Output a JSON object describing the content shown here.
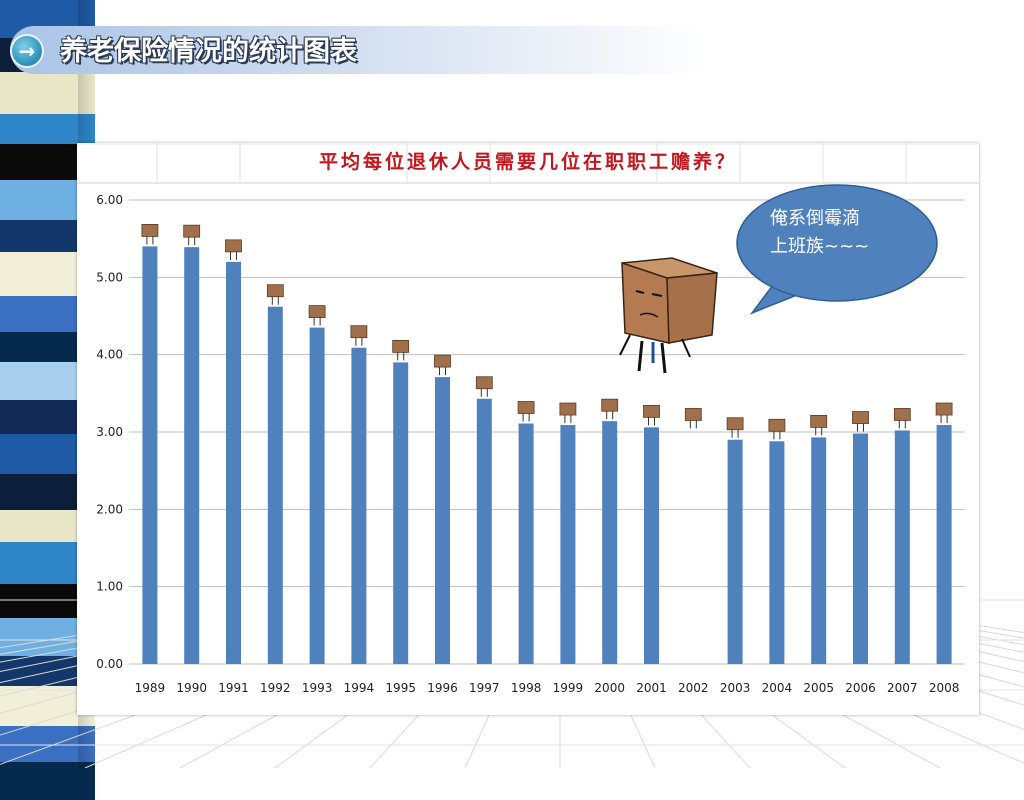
{
  "page": {
    "title": "养老保险情况的统计图表"
  },
  "bubble": {
    "line1": "俺系倒霉滴",
    "line2": "上班族~~~"
  },
  "colors": {
    "bar": "#4f81bd",
    "title": "#c0181e",
    "bubble": "#4f81bd",
    "grid": "#bfbfbf"
  },
  "chart_data": {
    "type": "bar",
    "title": "平均每位退休人员需要几位在职职工赡养？",
    "xlabel": "",
    "ylabel": "",
    "ylim": [
      0,
      6
    ],
    "yticks": [
      "0.00",
      "1.00",
      "2.00",
      "3.00",
      "4.00",
      "5.00",
      "6.00"
    ],
    "grid": true,
    "categories": [
      "1989",
      "1990",
      "1991",
      "1992",
      "1993",
      "1994",
      "1995",
      "1996",
      "1997",
      "1998",
      "1999",
      "2000",
      "2001",
      "2002",
      "2003",
      "2004",
      "2005",
      "2006",
      "2007",
      "2008"
    ],
    "values": [
      5.4,
      5.39,
      5.2,
      4.62,
      4.35,
      4.09,
      3.9,
      3.71,
      3.43,
      3.11,
      3.09,
      3.14,
      3.06,
      null,
      2.9,
      2.88,
      2.93,
      2.98,
      3.02,
      3.09
    ]
  }
}
